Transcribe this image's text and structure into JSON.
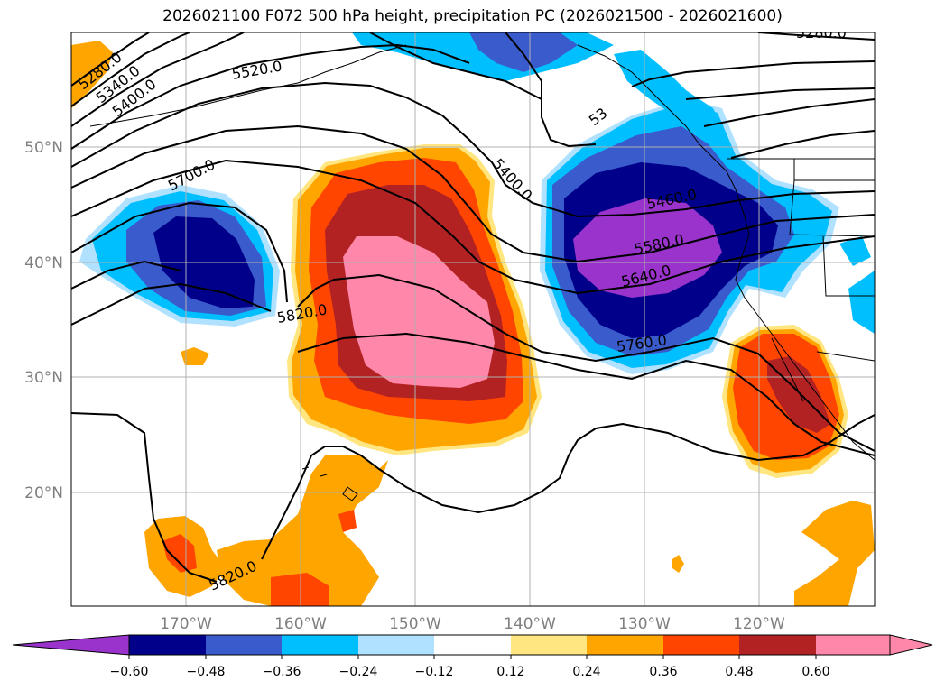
{
  "title": "2026021100 F072 500 hPa height, precipitation PC (2026021500 - 2026021600)",
  "lat_labels": [
    "50°N",
    "40°N",
    "30°N",
    "20°N"
  ],
  "lon_labels": [
    "170°W",
    "160°W",
    "150°W",
    "140°W",
    "130°W",
    "120°W"
  ],
  "colorbar": {
    "ticks": [
      "−0.60",
      "−0.48",
      "−0.36",
      "−0.24",
      "−0.12",
      "0.12",
      "0.24",
      "0.36",
      "0.48",
      "0.60"
    ],
    "colors": [
      "#9933cc",
      "#00008b",
      "#3a5bcc",
      "#00bfff",
      "#b0e2ff",
      "#ffffff",
      "#ffe680",
      "#ffa500",
      "#ff4500",
      "#b22222",
      "#ff88aa",
      "#ff88aa"
    ]
  },
  "contour_labels": [
    "5280.0",
    "5340.0",
    "5400.0",
    "5520.0",
    "5700.0",
    "5820.0",
    "5400.0",
    "5460.0",
    "5580.0",
    "5640.0",
    "5760.0",
    "5820.0",
    "5280.0",
    "53"
  ],
  "colors": {
    "purple": "#9933cc",
    "navy": "#00008b",
    "mid_blue": "#3a5bcc",
    "sky_blue": "#00bfff",
    "light_blue": "#b0e2ff",
    "light_yellow": "#ffe680",
    "orange": "#ffa500",
    "red_orange": "#ff4500",
    "dark_red": "#b22222",
    "pink": "#ff88aa"
  }
}
